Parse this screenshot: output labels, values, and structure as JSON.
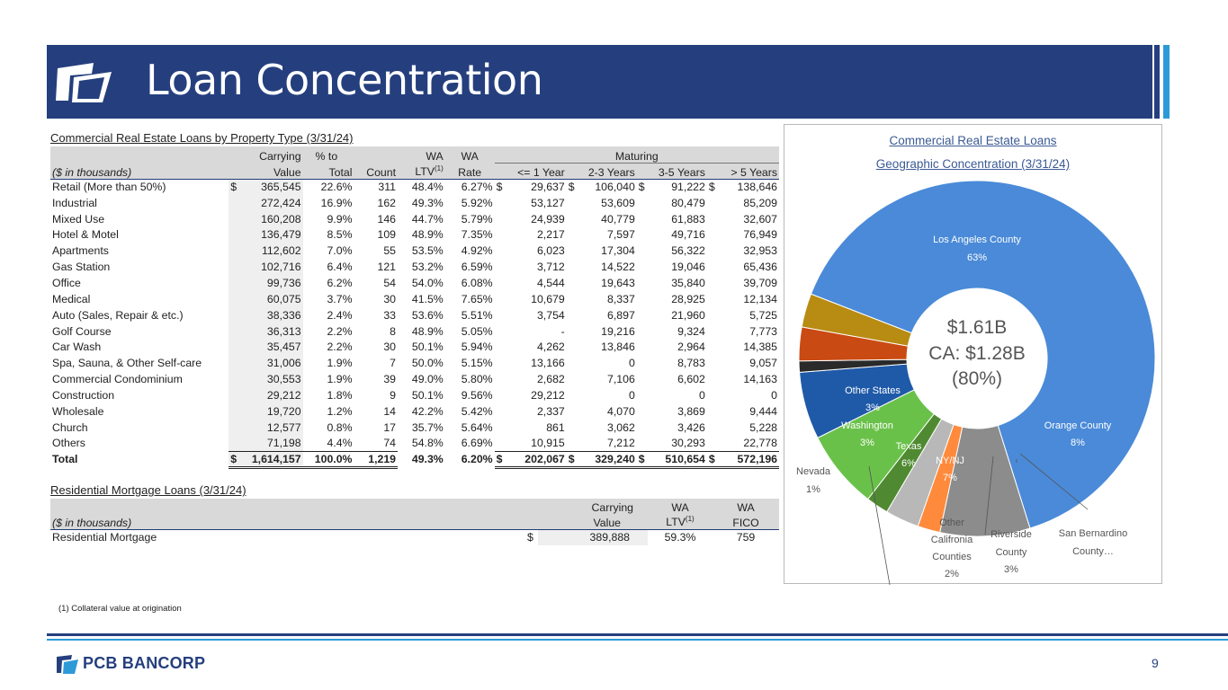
{
  "header": {
    "title": "Loan Concentration"
  },
  "cre": {
    "title": "Commercial Real Estate Loans by Property Type (3/31/24)",
    "units_label": "($ in thousands)",
    "maturing_label": "Maturing",
    "col_carrying_1": "Carrying",
    "col_carrying_2": "Value",
    "col_pct_1": "% to",
    "col_pct_2": "Total",
    "col_count": "Count",
    "col_ltv_1": "WA",
    "col_ltv_2": "LTV",
    "col_ltv_sup": "(1)",
    "col_rate_1": "WA",
    "col_rate_2": "Rate",
    "col_m1": "<= 1 Year",
    "col_m2": "2-3 Years",
    "col_m3": "3-5 Years",
    "col_m4": "> 5 Years",
    "dollar": "$",
    "rows": [
      {
        "type": "Retail (More than 50%)",
        "value": "365,545",
        "pct": "22.6%",
        "count": "311",
        "ltv": "48.4%",
        "rate": "6.27%",
        "m1": "29,637",
        "m2": "106,040",
        "m3": "91,222",
        "m4": "138,646"
      },
      {
        "type": "Industrial",
        "value": "272,424",
        "pct": "16.9%",
        "count": "162",
        "ltv": "49.3%",
        "rate": "5.92%",
        "m1": "53,127",
        "m2": "53,609",
        "m3": "80,479",
        "m4": "85,209"
      },
      {
        "type": "Mixed Use",
        "value": "160,208",
        "pct": "9.9%",
        "count": "146",
        "ltv": "44.7%",
        "rate": "5.79%",
        "m1": "24,939",
        "m2": "40,779",
        "m3": "61,883",
        "m4": "32,607"
      },
      {
        "type": "Hotel & Motel",
        "value": "136,479",
        "pct": "8.5%",
        "count": "109",
        "ltv": "48.9%",
        "rate": "7.35%",
        "m1": "2,217",
        "m2": "7,597",
        "m3": "49,716",
        "m4": "76,949"
      },
      {
        "type": "Apartments",
        "value": "112,602",
        "pct": "7.0%",
        "count": "55",
        "ltv": "53.5%",
        "rate": "4.92%",
        "m1": "6,023",
        "m2": "17,304",
        "m3": "56,322",
        "m4": "32,953"
      },
      {
        "type": "Gas Station",
        "value": "102,716",
        "pct": "6.4%",
        "count": "121",
        "ltv": "53.2%",
        "rate": "6.59%",
        "m1": "3,712",
        "m2": "14,522",
        "m3": "19,046",
        "m4": "65,436"
      },
      {
        "type": "Office",
        "value": "99,736",
        "pct": "6.2%",
        "count": "54",
        "ltv": "54.0%",
        "rate": "6.08%",
        "m1": "4,544",
        "m2": "19,643",
        "m3": "35,840",
        "m4": "39,709"
      },
      {
        "type": "Medical",
        "value": "60,075",
        "pct": "3.7%",
        "count": "30",
        "ltv": "41.5%",
        "rate": "7.65%",
        "m1": "10,679",
        "m2": "8,337",
        "m3": "28,925",
        "m4": "12,134"
      },
      {
        "type": "Auto (Sales, Repair & etc.)",
        "value": "38,336",
        "pct": "2.4%",
        "count": "33",
        "ltv": "53.6%",
        "rate": "5.51%",
        "m1": "3,754",
        "m2": "6,897",
        "m3": "21,960",
        "m4": "5,725"
      },
      {
        "type": "Golf Course",
        "value": "36,313",
        "pct": "2.2%",
        "count": "8",
        "ltv": "48.9%",
        "rate": "5.05%",
        "m1": "-",
        "m2": "19,216",
        "m3": "9,324",
        "m4": "7,773"
      },
      {
        "type": "Car Wash",
        "value": "35,457",
        "pct": "2.2%",
        "count": "30",
        "ltv": "50.1%",
        "rate": "5.94%",
        "m1": "4,262",
        "m2": "13,846",
        "m3": "2,964",
        "m4": "14,385"
      },
      {
        "type": "Spa, Sauna, & Other Self-care",
        "value": "31,006",
        "pct": "1.9%",
        "count": "7",
        "ltv": "50.0%",
        "rate": "5.15%",
        "m1": "13,166",
        "m2": "0",
        "m3": "8,783",
        "m4": "9,057"
      },
      {
        "type": "Commercial Condominium",
        "value": "30,553",
        "pct": "1.9%",
        "count": "39",
        "ltv": "49.0%",
        "rate": "5.80%",
        "m1": "2,682",
        "m2": "7,106",
        "m3": "6,602",
        "m4": "14,163"
      },
      {
        "type": "Construction",
        "value": "29,212",
        "pct": "1.8%",
        "count": "9",
        "ltv": "50.1%",
        "rate": "9.56%",
        "m1": "29,212",
        "m2": "0",
        "m3": "0",
        "m4": "0"
      },
      {
        "type": "Wholesale",
        "value": "19,720",
        "pct": "1.2%",
        "count": "14",
        "ltv": "42.2%",
        "rate": "5.42%",
        "m1": "2,337",
        "m2": "4,070",
        "m3": "3,869",
        "m4": "9,444"
      },
      {
        "type": "Church",
        "value": "12,577",
        "pct": "0.8%",
        "count": "17",
        "ltv": "35.7%",
        "rate": "5.64%",
        "m1": "861",
        "m2": "3,062",
        "m3": "3,426",
        "m4": "5,228"
      },
      {
        "type": "Others",
        "value": "71,198",
        "pct": "4.4%",
        "count": "74",
        "ltv": "54.8%",
        "rate": "6.69%",
        "m1": "10,915",
        "m2": "7,212",
        "m3": "30,293",
        "m4": "22,778"
      }
    ],
    "total": {
      "type": "Total",
      "value": "1,614,157",
      "pct": "100.0%",
      "count": "1,219",
      "ltv": "49.3%",
      "rate": "6.20%",
      "m1": "202,067",
      "m2": "329,240",
      "m3": "510,654",
      "m4": "572,196"
    }
  },
  "res": {
    "title": "Residential Mortgage Loans (3/31/24)",
    "units_label": "($ in thousands)",
    "col_carrying_1": "Carrying",
    "col_carrying_2": "Value",
    "col_ltv_1": "WA",
    "col_ltv_2": "LTV",
    "col_ltv_sup": "(1)",
    "col_fico_1": "WA",
    "col_fico_2": "FICO",
    "row": {
      "type": "Residential Mortgage",
      "dollar": "$",
      "value": "389,888",
      "ltv": "59.3%",
      "fico": "759"
    }
  },
  "chart": {
    "title_1": "Commercial Real Estate Loans",
    "title_2": "Geographic Concentration (3/31/24)",
    "center_1": "$1.61B",
    "center_2": "CA: $1.28B",
    "center_3": "(80%)"
  },
  "chart_data": {
    "type": "pie",
    "title": "Commercial Real Estate Loans Geographic Concentration (3/31/24)",
    "slices": [
      {
        "label": "Los Angeles County",
        "pct_label": "63%",
        "value": 63,
        "color": "#4a8ad8"
      },
      {
        "label": "Orange County",
        "pct_label": "8%",
        "value": 8,
        "color": "#8c8c8c"
      },
      {
        "label": "San Bernardino County…",
        "pct_label": "",
        "value": 2,
        "color": "#ff8a3c"
      },
      {
        "label": "Riverside County",
        "pct_label": "3%",
        "value": 3,
        "color": "#b8b8b8"
      },
      {
        "label": "Other Califronia Counties",
        "pct_label": "2%",
        "value": 2,
        "color": "#4f8a32"
      },
      {
        "label": "NY/NJ",
        "pct_label": "7%",
        "value": 7,
        "color": "#6ac14a"
      },
      {
        "label": "Texas",
        "pct_label": "6%",
        "value": 6,
        "color": "#1f5aa8"
      },
      {
        "label": "Nevada",
        "pct_label": "1%",
        "value": 1,
        "color": "#2a2a2a"
      },
      {
        "label": "Washington",
        "pct_label": "3%",
        "value": 3,
        "color": "#c94a12"
      },
      {
        "label": "Other States",
        "pct_label": "3%",
        "value": 3,
        "color": "#b88b12"
      }
    ]
  },
  "footnote": "(1)    Collateral value at origination",
  "footer": {
    "brand": "PCB BANCORP",
    "page": "9"
  }
}
